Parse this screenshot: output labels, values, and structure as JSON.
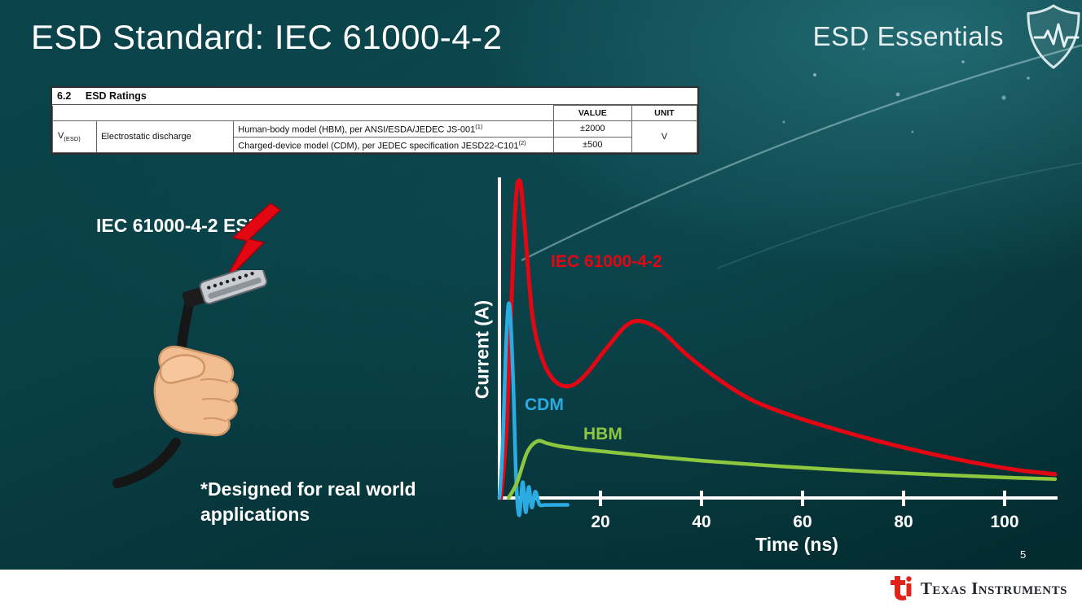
{
  "slide": {
    "title": "ESD Standard: IEC 61000-4-2",
    "brand": "ESD Essentials",
    "page_number": "5",
    "footer_brand": "Texas Instruments"
  },
  "ratings_table": {
    "section_number": "6.2",
    "section_title": "ESD Ratings",
    "col_value": "VALUE",
    "col_unit": "UNIT",
    "param_symbol": "V",
    "param_subscript": "(ESD)",
    "param_name": "Electrostatic discharge",
    "rows": [
      {
        "description": "Human-body model (HBM), per ANSI/ESDA/JEDEC JS-001",
        "superscript": "(1)",
        "value": "±2000"
      },
      {
        "description": "Charged-device model (CDM), per JEDEC specification JESD22-C101",
        "superscript": "(2)",
        "value": "±500"
      }
    ],
    "unit": "V"
  },
  "illustration": {
    "label": "IEC 61000-4-2 ESD",
    "note": "*Designed for real world\napplications"
  },
  "chart_data": {
    "type": "line",
    "title": "",
    "xlabel": "Time (ns)",
    "ylabel": "Current (A)",
    "x_ticks": [
      20,
      40,
      60,
      80,
      100
    ],
    "xlim": [
      0,
      112
    ],
    "ylim": [
      0,
      10.5
    ],
    "y_units": "relative amplitude (axis unlabeled)",
    "grid": false,
    "legend": "inline labels on curves",
    "series": [
      {
        "name": "IEC 61000-4-2",
        "color": "#e30613",
        "points": [
          [
            0.3,
            0
          ],
          [
            1.5,
            2.5
          ],
          [
            3,
            8.8
          ],
          [
            4,
            10.05
          ],
          [
            5,
            8.6
          ],
          [
            6.5,
            5.8
          ],
          [
            8.5,
            4.4
          ],
          [
            11,
            3.7
          ],
          [
            14,
            3.55
          ],
          [
            17,
            3.9
          ],
          [
            21,
            4.7
          ],
          [
            25,
            5.45
          ],
          [
            28,
            5.6
          ],
          [
            32,
            5.3
          ],
          [
            37,
            4.55
          ],
          [
            43,
            3.8
          ],
          [
            50,
            3.1
          ],
          [
            58,
            2.6
          ],
          [
            66,
            2.2
          ],
          [
            75,
            1.8
          ],
          [
            84,
            1.45
          ],
          [
            93,
            1.15
          ],
          [
            102,
            0.9
          ],
          [
            110,
            0.75
          ]
        ]
      },
      {
        "name": "CDM",
        "color": "#2aace3",
        "points": [
          [
            0,
            0
          ],
          [
            0.6,
            1.5
          ],
          [
            1.4,
            5.2
          ],
          [
            2,
            6.1
          ],
          [
            2.7,
            3.8
          ],
          [
            3.3,
            0.6
          ],
          [
            3.9,
            -0.55
          ],
          [
            4.6,
            0.5
          ],
          [
            5.2,
            -0.45
          ],
          [
            5.8,
            0.35
          ],
          [
            6.4,
            -0.3
          ],
          [
            7.1,
            0.2
          ],
          [
            7.9,
            -0.2
          ],
          [
            9,
            -0.22
          ],
          [
            11,
            -0.22
          ],
          [
            13.5,
            -0.22
          ]
        ]
      },
      {
        "name": "HBM",
        "color": "#8dc63f",
        "points": [
          [
            1.8,
            0
          ],
          [
            3.5,
            0.5
          ],
          [
            5.5,
            1.45
          ],
          [
            7.5,
            1.8
          ],
          [
            9.5,
            1.73
          ],
          [
            12,
            1.64
          ],
          [
            16,
            1.55
          ],
          [
            22,
            1.45
          ],
          [
            30,
            1.32
          ],
          [
            40,
            1.18
          ],
          [
            52,
            1.04
          ],
          [
            64,
            0.92
          ],
          [
            78,
            0.8
          ],
          [
            92,
            0.7
          ],
          [
            102,
            0.64
          ],
          [
            110,
            0.6
          ]
        ]
      }
    ]
  }
}
